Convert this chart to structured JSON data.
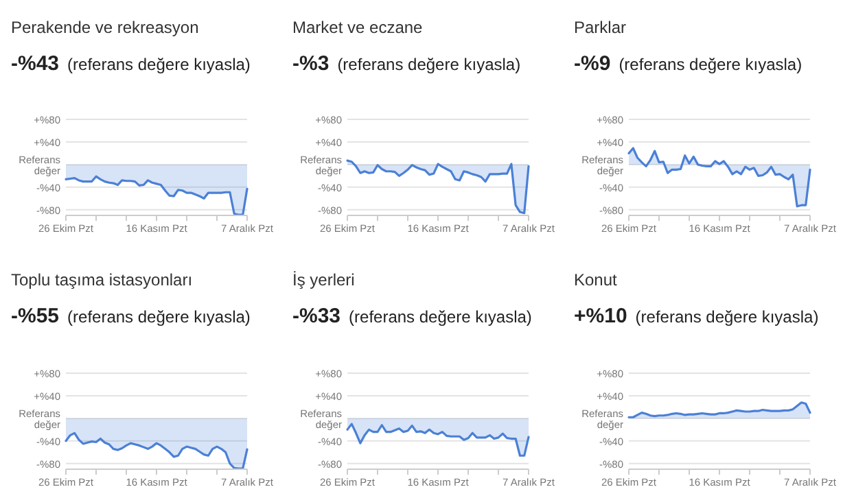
{
  "chart_data": [
    {
      "type": "area",
      "title": "Perakende ve rekreasyon",
      "subtitle": "-%43 (referans değere kıyasla)",
      "x": [
        "--10-26",
        "--10-27",
        "--10-28",
        "--10-29",
        "--10-30",
        "--10-31",
        "--11-01",
        "--11-02",
        "--11-03",
        "--11-04",
        "--11-05",
        "--11-06",
        "--11-07",
        "--11-08",
        "--11-09",
        "--11-10",
        "--11-11",
        "--11-12",
        "--11-13",
        "--11-14",
        "--11-15",
        "--11-16",
        "--11-17",
        "--11-18",
        "--11-19",
        "--11-20",
        "--11-21",
        "--11-22",
        "--11-23",
        "--11-24",
        "--11-25",
        "--11-26",
        "--11-27",
        "--11-28",
        "--11-29",
        "--11-30",
        "--12-01",
        "--12-02",
        "--12-03",
        "--12-04",
        "--12-05",
        "--12-06",
        "--12-07"
      ],
      "series": [
        {
          "color": "#4a80d6",
          "values": [
            -26,
            -25,
            -24,
            -28,
            -30,
            -30,
            -30,
            -21,
            -26,
            -30,
            -32,
            -33,
            -36,
            -28,
            -29,
            -29,
            -30,
            -37,
            -36,
            -28,
            -32,
            -34,
            -36,
            -46,
            -55,
            -56,
            -45,
            -46,
            -50,
            -50,
            -53,
            -56,
            -60,
            -50,
            -50,
            -50,
            -50,
            -49,
            -49,
            -87,
            -89,
            -89,
            -43
          ]
        }
      ],
      "ylim": [
        -90,
        80
      ],
      "yticks": [
        {
          "value": 80,
          "label": "+%80"
        },
        {
          "value": 40,
          "label": "+%40"
        },
        {
          "value": 0,
          "label": "Referans değer"
        },
        {
          "value": -40,
          "label": "-%40"
        },
        {
          "value": -80,
          "label": "-%80"
        }
      ],
      "xlim": [
        "--10-26",
        "--12-07"
      ],
      "xticks": [
        {
          "value": "--10-26",
          "label": "26 Ekim Pzt"
        },
        {
          "value": "--11-02",
          "label": null
        },
        {
          "value": "--11-09",
          "label": null
        },
        {
          "value": "--11-16",
          "label": "16 Kasım Pzt"
        },
        {
          "value": "--11-23",
          "label": null
        },
        {
          "value": "--11-30",
          "label": null
        },
        {
          "value": "--12-07",
          "label": "7 Aralık Pzt"
        }
      ],
      "grid": "y",
      "legend": false
    },
    {
      "type": "area",
      "title": "Market ve eczane",
      "subtitle": "-%3 (referans değere kıyasla)",
      "x": [
        "--10-26",
        "--10-27",
        "--10-28",
        "--10-29",
        "--10-30",
        "--10-31",
        "--11-01",
        "--11-02",
        "--11-03",
        "--11-04",
        "--11-05",
        "--11-06",
        "--11-07",
        "--11-08",
        "--11-09",
        "--11-10",
        "--11-11",
        "--11-12",
        "--11-13",
        "--11-14",
        "--11-15",
        "--11-16",
        "--11-17",
        "--11-18",
        "--11-19",
        "--11-20",
        "--11-21",
        "--11-22",
        "--11-23",
        "--11-24",
        "--11-25",
        "--11-26",
        "--11-27",
        "--11-28",
        "--11-29",
        "--11-30",
        "--12-01",
        "--12-02",
        "--12-03",
        "--12-04",
        "--12-05",
        "--12-06",
        "--12-07"
      ],
      "series": [
        {
          "color": "#4a80d6",
          "values": [
            7,
            5,
            -3,
            -15,
            -12,
            -15,
            -14,
            -1,
            -8,
            -12,
            -12,
            -13,
            -20,
            -15,
            -9,
            -1,
            -5,
            -8,
            -10,
            -18,
            -16,
            1,
            -4,
            -8,
            -12,
            -26,
            -28,
            -12,
            -14,
            -17,
            -19,
            -22,
            -30,
            -17,
            -17,
            -17,
            -16,
            -16,
            1,
            -72,
            -84,
            -86,
            -3
          ]
        }
      ],
      "ylim": [
        -90,
        80
      ],
      "yticks": [
        {
          "value": 80,
          "label": "+%80"
        },
        {
          "value": 40,
          "label": "+%40"
        },
        {
          "value": 0,
          "label": "Referans değer"
        },
        {
          "value": -40,
          "label": "-%40"
        },
        {
          "value": -80,
          "label": "-%80"
        }
      ],
      "xlim": [
        "--10-26",
        "--12-07"
      ],
      "xticks": [
        {
          "value": "--10-26",
          "label": "26 Ekim Pzt"
        },
        {
          "value": "--11-02",
          "label": null
        },
        {
          "value": "--11-09",
          "label": null
        },
        {
          "value": "--11-16",
          "label": "16 Kasım Pzt"
        },
        {
          "value": "--11-23",
          "label": null
        },
        {
          "value": "--11-30",
          "label": null
        },
        {
          "value": "--12-07",
          "label": "7 Aralık Pzt"
        }
      ],
      "grid": "y",
      "legend": false
    },
    {
      "type": "area",
      "title": "Parklar",
      "subtitle": "-%9 (referans değere kıyasla)",
      "x": [
        "--10-26",
        "--10-27",
        "--10-28",
        "--10-29",
        "--10-30",
        "--10-31",
        "--11-01",
        "--11-02",
        "--11-03",
        "--11-04",
        "--11-05",
        "--11-06",
        "--11-07",
        "--11-08",
        "--11-09",
        "--11-10",
        "--11-11",
        "--11-12",
        "--11-13",
        "--11-14",
        "--11-15",
        "--11-16",
        "--11-17",
        "--11-18",
        "--11-19",
        "--11-20",
        "--11-21",
        "--11-22",
        "--11-23",
        "--11-24",
        "--11-25",
        "--11-26",
        "--11-27",
        "--11-28",
        "--11-29",
        "--11-30",
        "--12-01",
        "--12-02",
        "--12-03",
        "--12-04",
        "--12-05",
        "--12-06",
        "--12-07"
      ],
      "series": [
        {
          "color": "#4a80d6",
          "values": [
            20,
            29,
            12,
            4,
            -3,
            8,
            24,
            4,
            5,
            -15,
            -9,
            -9,
            -8,
            16,
            2,
            14,
            0,
            -2,
            -3,
            -3,
            6,
            1,
            6,
            -4,
            -17,
            -12,
            -17,
            -4,
            -9,
            -6,
            -20,
            -19,
            -14,
            -4,
            -18,
            -17,
            -22,
            -26,
            -18,
            -74,
            -72,
            -72,
            -9
          ]
        }
      ],
      "ylim": [
        -90,
        80
      ],
      "yticks": [
        {
          "value": 80,
          "label": "+%80"
        },
        {
          "value": 40,
          "label": "+%40"
        },
        {
          "value": 0,
          "label": "Referans değer"
        },
        {
          "value": -40,
          "label": "-%40"
        },
        {
          "value": -80,
          "label": "-%80"
        }
      ],
      "xlim": [
        "--10-26",
        "--12-07"
      ],
      "xticks": [
        {
          "value": "--10-26",
          "label": "26 Ekim Pzt"
        },
        {
          "value": "--11-02",
          "label": null
        },
        {
          "value": "--11-09",
          "label": null
        },
        {
          "value": "--11-16",
          "label": "16 Kasım Pzt"
        },
        {
          "value": "--11-23",
          "label": null
        },
        {
          "value": "--11-30",
          "label": null
        },
        {
          "value": "--12-07",
          "label": "7 Aralık Pzt"
        }
      ],
      "grid": "y",
      "legend": false
    },
    {
      "type": "area",
      "title": "Toplu taşıma istasyonları",
      "subtitle": "-%55 (referans değere kıyasla)",
      "x": [
        "--10-26",
        "--10-27",
        "--10-28",
        "--10-29",
        "--10-30",
        "--10-31",
        "--11-01",
        "--11-02",
        "--11-03",
        "--11-04",
        "--11-05",
        "--11-06",
        "--11-07",
        "--11-08",
        "--11-09",
        "--11-10",
        "--11-11",
        "--11-12",
        "--11-13",
        "--11-14",
        "--11-15",
        "--11-16",
        "--11-17",
        "--11-18",
        "--11-19",
        "--11-20",
        "--11-21",
        "--11-22",
        "--11-23",
        "--11-24",
        "--11-25",
        "--11-26",
        "--11-27",
        "--11-28",
        "--11-29",
        "--11-30",
        "--12-01",
        "--12-02",
        "--12-03",
        "--12-04",
        "--12-05",
        "--12-06",
        "--12-07"
      ],
      "series": [
        {
          "color": "#4a80d6",
          "values": [
            -40,
            -30,
            -26,
            -38,
            -45,
            -43,
            -41,
            -42,
            -36,
            -43,
            -46,
            -54,
            -56,
            -53,
            -48,
            -44,
            -46,
            -48,
            -51,
            -54,
            -50,
            -44,
            -48,
            -54,
            -60,
            -68,
            -66,
            -54,
            -50,
            -52,
            -54,
            -59,
            -64,
            -66,
            -54,
            -50,
            -54,
            -60,
            -80,
            -88,
            -89,
            -89,
            -55
          ]
        }
      ],
      "ylim": [
        -90,
        80
      ],
      "yticks": [
        {
          "value": 80,
          "label": "+%80"
        },
        {
          "value": 40,
          "label": "+%40"
        },
        {
          "value": 0,
          "label": "Referans değer"
        },
        {
          "value": -40,
          "label": "-%40"
        },
        {
          "value": -80,
          "label": "-%80"
        }
      ],
      "xlim": [
        "--10-26",
        "--12-07"
      ],
      "xticks": [
        {
          "value": "--10-26",
          "label": "26 Ekim Pzt"
        },
        {
          "value": "--11-02",
          "label": null
        },
        {
          "value": "--11-09",
          "label": null
        },
        {
          "value": "--11-16",
          "label": "16 Kasım Pzt"
        },
        {
          "value": "--11-23",
          "label": null
        },
        {
          "value": "--11-30",
          "label": null
        },
        {
          "value": "--12-07",
          "label": "7 Aralık Pzt"
        }
      ],
      "grid": "y",
      "legend": false
    },
    {
      "type": "area",
      "title": "İş yerleri",
      "subtitle": "-%33 (referans değere kıyasla)",
      "x": [
        "--10-26",
        "--10-27",
        "--10-28",
        "--10-29",
        "--10-30",
        "--10-31",
        "--11-01",
        "--11-02",
        "--11-03",
        "--11-04",
        "--11-05",
        "--11-06",
        "--11-07",
        "--11-08",
        "--11-09",
        "--11-10",
        "--11-11",
        "--11-12",
        "--11-13",
        "--11-14",
        "--11-15",
        "--11-16",
        "--11-17",
        "--11-18",
        "--11-19",
        "--11-20",
        "--11-21",
        "--11-22",
        "--11-23",
        "--11-24",
        "--11-25",
        "--11-26",
        "--11-27",
        "--11-28",
        "--11-29",
        "--11-30",
        "--12-01",
        "--12-02",
        "--12-03",
        "--12-04",
        "--12-05",
        "--12-06",
        "--12-07"
      ],
      "series": [
        {
          "color": "#4a80d6",
          "values": [
            -20,
            -10,
            -26,
            -44,
            -30,
            -20,
            -24,
            -24,
            -12,
            -24,
            -24,
            -21,
            -18,
            -24,
            -22,
            -13,
            -24,
            -23,
            -26,
            -20,
            -26,
            -28,
            -24,
            -31,
            -32,
            -32,
            -32,
            -38,
            -35,
            -26,
            -34,
            -34,
            -34,
            -30,
            -36,
            -34,
            -27,
            -35,
            -36,
            -36,
            -66,
            -66,
            -33
          ]
        }
      ],
      "ylim": [
        -90,
        80
      ],
      "yticks": [
        {
          "value": 80,
          "label": "+%80"
        },
        {
          "value": 40,
          "label": "+%40"
        },
        {
          "value": 0,
          "label": "Referans değer"
        },
        {
          "value": -40,
          "label": "-%40"
        },
        {
          "value": -80,
          "label": "-%80"
        }
      ],
      "xlim": [
        "--10-26",
        "--12-07"
      ],
      "xticks": [
        {
          "value": "--10-26",
          "label": "26 Ekim Pzt"
        },
        {
          "value": "--11-02",
          "label": null
        },
        {
          "value": "--11-09",
          "label": null
        },
        {
          "value": "--11-16",
          "label": "16 Kasım Pzt"
        },
        {
          "value": "--11-23",
          "label": null
        },
        {
          "value": "--11-30",
          "label": null
        },
        {
          "value": "--12-07",
          "label": "7 Aralık Pzt"
        }
      ],
      "grid": "y",
      "legend": false
    },
    {
      "type": "area",
      "title": "Konut",
      "subtitle": "+%10 (referans değere kıyasla)",
      "x": [
        "--10-26",
        "--10-27",
        "--10-28",
        "--10-29",
        "--10-30",
        "--10-31",
        "--11-01",
        "--11-02",
        "--11-03",
        "--11-04",
        "--11-05",
        "--11-06",
        "--11-07",
        "--11-08",
        "--11-09",
        "--11-10",
        "--11-11",
        "--11-12",
        "--11-13",
        "--11-14",
        "--11-15",
        "--11-16",
        "--11-17",
        "--11-18",
        "--11-19",
        "--11-20",
        "--11-21",
        "--11-22",
        "--11-23",
        "--11-24",
        "--11-25",
        "--11-26",
        "--11-27",
        "--11-28",
        "--11-29",
        "--11-30",
        "--12-01",
        "--12-02",
        "--12-03",
        "--12-04",
        "--12-05",
        "--12-06",
        "--12-07"
      ],
      "series": [
        {
          "color": "#4a80d6",
          "values": [
            2,
            2,
            6,
            10,
            8,
            5,
            4,
            5,
            5,
            6,
            8,
            9,
            8,
            6,
            7,
            7,
            8,
            9,
            8,
            7,
            7,
            9,
            9,
            10,
            12,
            14,
            13,
            12,
            12,
            13,
            13,
            15,
            14,
            13,
            13,
            13,
            14,
            14,
            16,
            22,
            28,
            26,
            10
          ]
        }
      ],
      "ylim": [
        -90,
        80
      ],
      "yticks": [
        {
          "value": 80,
          "label": "+%80"
        },
        {
          "value": 40,
          "label": "+%40"
        },
        {
          "value": 0,
          "label": "Referans değer"
        },
        {
          "value": -40,
          "label": "-%40"
        },
        {
          "value": -80,
          "label": "-%80"
        }
      ],
      "xlim": [
        "--10-26",
        "--12-07"
      ],
      "xticks": [
        {
          "value": "--10-26",
          "label": "26 Ekim Pzt"
        },
        {
          "value": "--11-02",
          "label": null
        },
        {
          "value": "--11-09",
          "label": null
        },
        {
          "value": "--11-16",
          "label": "16 Kasım Pzt"
        },
        {
          "value": "--11-23",
          "label": null
        },
        {
          "value": "--11-30",
          "label": null
        },
        {
          "value": "--12-07",
          "label": "7 Aralık Pzt"
        }
      ],
      "grid": "y",
      "legend": false
    }
  ]
}
